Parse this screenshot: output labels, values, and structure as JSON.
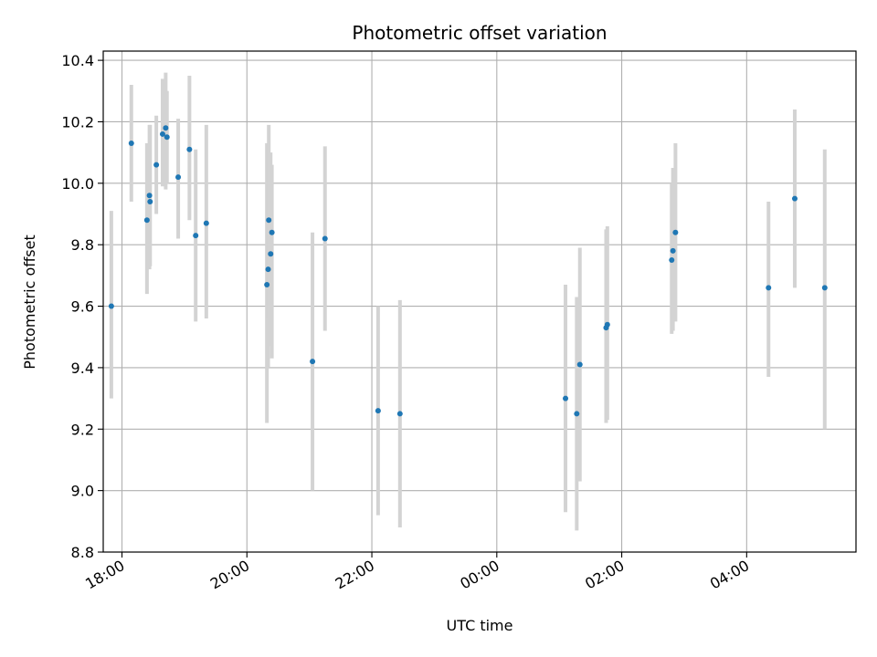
{
  "chart_data": {
    "type": "scatter",
    "title": "Photometric offset variation",
    "xlabel": "UTC time",
    "ylabel": "Photometric offset",
    "x_unit": "hours after 18:00 UTC (wraps past midnight)",
    "xlim": [
      -0.3,
      11.75
    ],
    "ylim": [
      8.8,
      10.43
    ],
    "x_ticks": [
      {
        "value": 0,
        "label": "18:00"
      },
      {
        "value": 2,
        "label": "20:00"
      },
      {
        "value": 4,
        "label": "22:00"
      },
      {
        "value": 6,
        "label": "00:00"
      },
      {
        "value": 8,
        "label": "02:00"
      },
      {
        "value": 10,
        "label": "04:00"
      }
    ],
    "y_ticks": [
      8.8,
      9.0,
      9.2,
      9.4,
      9.6,
      9.8,
      10.0,
      10.2,
      10.4
    ],
    "grid": true,
    "point_color": "#1f77b4",
    "errorbar_color": "#d3d3d3",
    "points": [
      {
        "x": -0.17,
        "y": 9.6,
        "low": 9.3,
        "high": 9.91
      },
      {
        "x": 0.15,
        "y": 10.13,
        "low": 9.94,
        "high": 10.32
      },
      {
        "x": 0.4,
        "y": 9.88,
        "low": 9.64,
        "high": 10.13
      },
      {
        "x": 0.44,
        "y": 9.96,
        "low": 9.72,
        "high": 10.19
      },
      {
        "x": 0.45,
        "y": 9.94,
        "low": 9.73,
        "high": 10.19
      },
      {
        "x": 0.55,
        "y": 10.06,
        "low": 9.9,
        "high": 10.22
      },
      {
        "x": 0.65,
        "y": 10.16,
        "low": 9.99,
        "high": 10.34
      },
      {
        "x": 0.7,
        "y": 10.18,
        "low": 9.98,
        "high": 10.36
      },
      {
        "x": 0.72,
        "y": 10.15,
        "low": 10.0,
        "high": 10.3
      },
      {
        "x": 0.9,
        "y": 10.02,
        "low": 9.82,
        "high": 10.21
      },
      {
        "x": 1.08,
        "y": 10.11,
        "low": 9.88,
        "high": 10.35
      },
      {
        "x": 1.18,
        "y": 9.83,
        "low": 9.55,
        "high": 10.11
      },
      {
        "x": 1.35,
        "y": 9.87,
        "low": 9.56,
        "high": 10.19
      },
      {
        "x": 2.32,
        "y": 9.67,
        "low": 9.22,
        "high": 10.13
      },
      {
        "x": 2.34,
        "y": 9.72,
        "low": 9.4,
        "high": 10.12
      },
      {
        "x": 2.35,
        "y": 9.88,
        "low": 9.56,
        "high": 10.19
      },
      {
        "x": 2.38,
        "y": 9.77,
        "low": 9.47,
        "high": 10.1
      },
      {
        "x": 2.4,
        "y": 9.84,
        "low": 9.43,
        "high": 10.06
      },
      {
        "x": 3.05,
        "y": 9.42,
        "low": 9.0,
        "high": 9.84
      },
      {
        "x": 3.25,
        "y": 9.82,
        "low": 9.52,
        "high": 10.12
      },
      {
        "x": 4.1,
        "y": 9.26,
        "low": 8.92,
        "high": 9.6
      },
      {
        "x": 4.45,
        "y": 9.25,
        "low": 8.88,
        "high": 9.62
      },
      {
        "x": 7.1,
        "y": 9.3,
        "low": 8.93,
        "high": 9.67
      },
      {
        "x": 7.28,
        "y": 9.25,
        "low": 8.87,
        "high": 9.63
      },
      {
        "x": 7.33,
        "y": 9.41,
        "low": 9.03,
        "high": 9.79
      },
      {
        "x": 7.75,
        "y": 9.53,
        "low": 9.22,
        "high": 9.85
      },
      {
        "x": 7.77,
        "y": 9.54,
        "low": 9.23,
        "high": 9.86
      },
      {
        "x": 8.8,
        "y": 9.75,
        "low": 9.51,
        "high": 10.0
      },
      {
        "x": 8.82,
        "y": 9.78,
        "low": 9.52,
        "high": 10.05
      },
      {
        "x": 8.86,
        "y": 9.84,
        "low": 9.55,
        "high": 10.13
      },
      {
        "x": 10.35,
        "y": 9.66,
        "low": 9.37,
        "high": 9.94
      },
      {
        "x": 10.77,
        "y": 9.95,
        "low": 9.66,
        "high": 10.24
      },
      {
        "x": 11.25,
        "y": 9.66,
        "low": 9.2,
        "high": 10.11
      }
    ]
  }
}
